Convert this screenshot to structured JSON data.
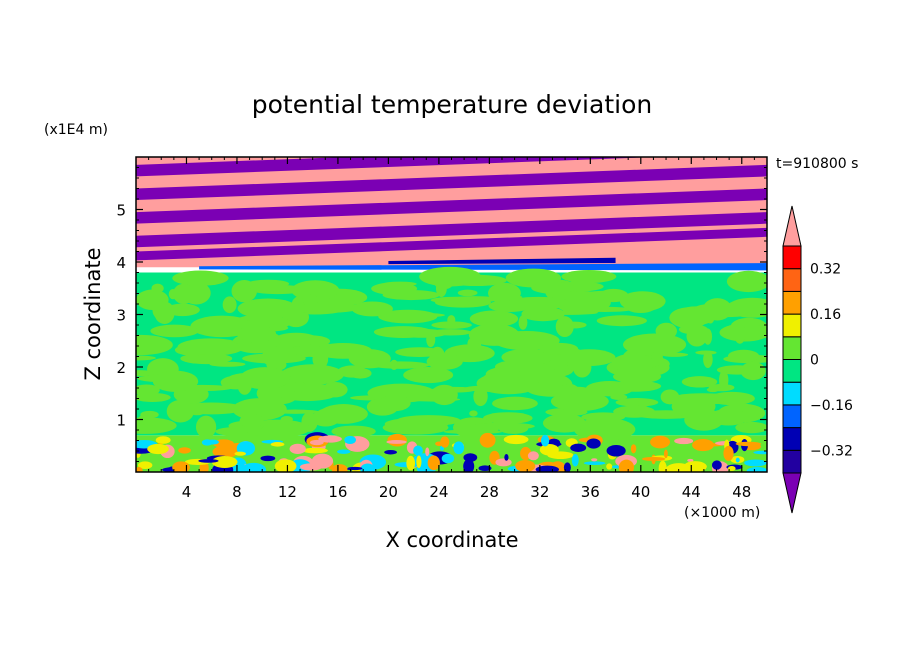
{
  "chart_data": {
    "type": "heatmap",
    "title": "potential temperature deviation",
    "xlabel": "X coordinate",
    "ylabel": "Z coordinate",
    "x_unit_label": "(×1000 m)",
    "y_unit_label": "(x1E4 m)",
    "time_label": "t=910800 s",
    "xlim": [
      0,
      50
    ],
    "ylim": [
      0,
      6
    ],
    "x_ticks": [
      "4",
      "8",
      "12",
      "16",
      "20",
      "24",
      "28",
      "32",
      "36",
      "40",
      "44",
      "48"
    ],
    "y_ticks": [
      "1",
      "2",
      "3",
      "4",
      "5"
    ],
    "colorbar": {
      "labels": [
        "0.32",
        "0.16",
        "0",
        "−0.16",
        "−0.32"
      ],
      "colors": [
        "#7b00b4",
        "#2200a0",
        "#0000b4",
        "#0064ff",
        "#00dcff",
        "#00e682",
        "#64e632",
        "#f0f000",
        "#ffa000",
        "#ff6414",
        "#ff0000",
        "#ff9e9e"
      ]
    },
    "regions": [
      {
        "z_range": [
          3.9,
          6.0
        ],
        "description": "alternating stripes tilted upward",
        "colors": [
          "#ff9e9e",
          "#7b00b4"
        ]
      },
      {
        "z_range": [
          3.8,
          3.95
        ],
        "description": "thin band near 4",
        "colors": [
          "#0064ff",
          "#0000b4"
        ]
      },
      {
        "z_range": [
          0.7,
          3.8
        ],
        "description": "mottled field around zero",
        "colors": [
          "#00e682",
          "#64e632"
        ]
      },
      {
        "z_range": [
          0.0,
          0.7
        ],
        "description": "turbulent lower layer",
        "colors": [
          "#64e632",
          "#f0f000",
          "#ffa000",
          "#0000b4",
          "#00dcff",
          "#ff9e9e"
        ]
      }
    ]
  }
}
